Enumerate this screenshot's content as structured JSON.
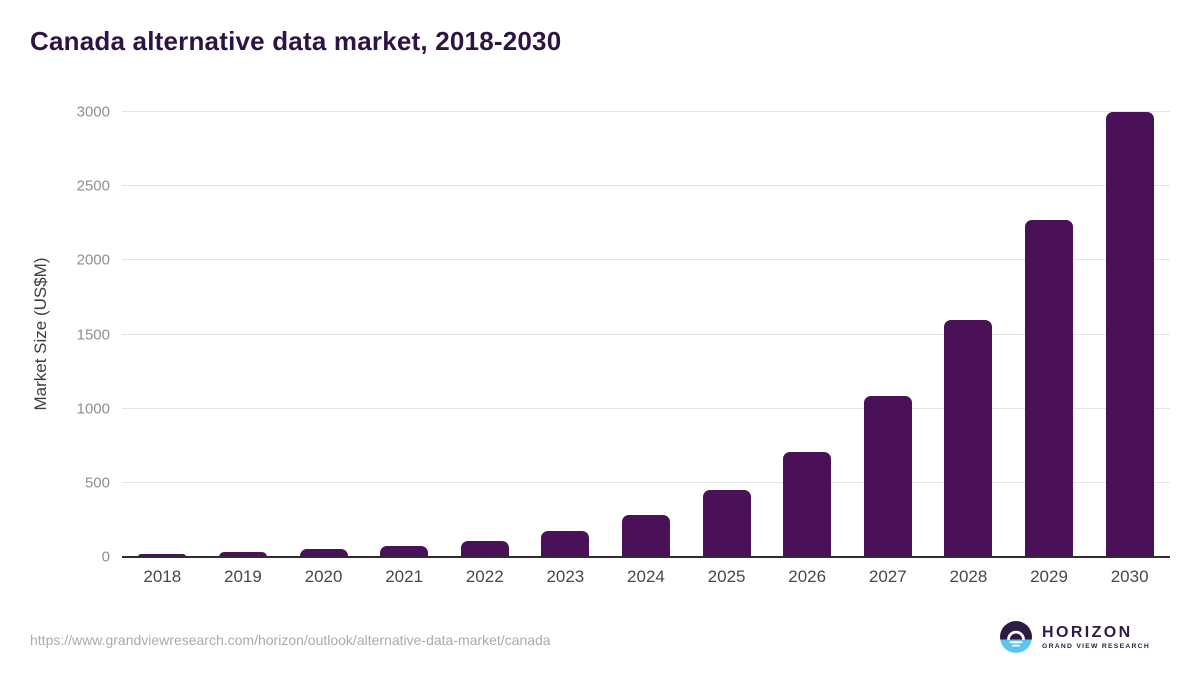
{
  "header": {
    "title": "Canada alternative data market, 2018-2030"
  },
  "chart_data": {
    "type": "bar",
    "title": "Canada alternative data market, 2018-2030",
    "categories": [
      "2018",
      "2019",
      "2020",
      "2021",
      "2022",
      "2023",
      "2024",
      "2025",
      "2026",
      "2027",
      "2028",
      "2029",
      "2030"
    ],
    "values": [
      22,
      36,
      52,
      75,
      110,
      178,
      285,
      452,
      710,
      1085,
      1600,
      2270,
      3000
    ],
    "xlabel": "",
    "ylabel": "Market Size (US$M)",
    "ylim": [
      0,
      3000
    ],
    "yticks": [
      0,
      500,
      1000,
      1500,
      2000,
      2500,
      3000
    ],
    "grid": true,
    "legend": false,
    "bar_color": "#4a1158",
    "gridline_color": "#e4e4e4",
    "axis_line_color": "#2d2d2d"
  },
  "footer": {
    "source_url": "https://www.grandviewresearch.com/horizon/outlook/alternative-data-market/canada",
    "logo": {
      "name": "HORIZON",
      "subtitle": "GRAND VIEW RESEARCH",
      "purple": "#2d1b45",
      "blue": "#5bc5ec"
    }
  }
}
